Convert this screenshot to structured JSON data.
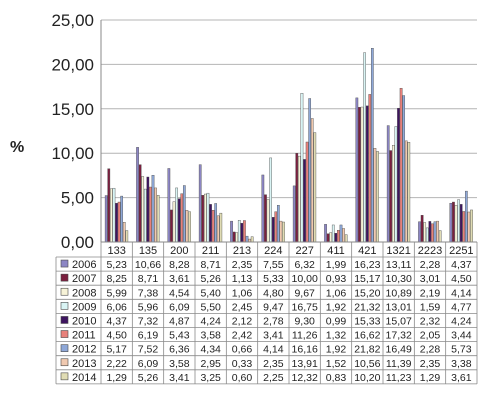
{
  "chart_data": {
    "type": "bar",
    "title": "",
    "xlabel": "",
    "ylabel": "%",
    "ylim": [
      0,
      25
    ],
    "yticks": [
      "0,00",
      "5,00",
      "10,00",
      "15,00",
      "20,00",
      "25,00"
    ],
    "grid": true,
    "legend": "data-table",
    "categories": [
      "133",
      "135",
      "200",
      "211",
      "213",
      "224",
      "227",
      "411",
      "421",
      "1321",
      "2223",
      "2251"
    ],
    "series": [
      {
        "name": "2006",
        "color": "#8c86c4",
        "labels": [
          "5,23",
          "10,66",
          "8,28",
          "8,71",
          "2,35",
          "7,55",
          "6,32",
          "1,99",
          "16,23",
          "13,11",
          "2,28",
          "4,37"
        ],
        "values": [
          5.23,
          10.66,
          8.28,
          8.71,
          2.35,
          7.55,
          6.32,
          1.99,
          16.23,
          13.11,
          2.28,
          4.37
        ]
      },
      {
        "name": "2007",
        "color": "#7b1f3f",
        "labels": [
          "8,25",
          "8,71",
          "3,61",
          "5,26",
          "1,13",
          "5,33",
          "10,00",
          "0,93",
          "15,17",
          "10,30",
          "3,01",
          "4,50"
        ],
        "values": [
          8.25,
          8.71,
          3.61,
          5.26,
          1.13,
          5.33,
          10.0,
          0.93,
          15.17,
          10.3,
          3.01,
          4.5
        ]
      },
      {
        "name": "2008",
        "color": "#f7f3d8",
        "labels": [
          "5,99",
          "7,38",
          "4,54",
          "5,40",
          "1,06",
          "4,80",
          "9,67",
          "1,06",
          "15,20",
          "10,89",
          "2,19",
          "4,14"
        ],
        "values": [
          5.99,
          7.38,
          4.54,
          5.4,
          1.06,
          4.8,
          9.67,
          1.06,
          15.2,
          10.89,
          2.19,
          4.14
        ]
      },
      {
        "name": "2009",
        "color": "#d9f4f4",
        "labels": [
          "6,06",
          "5,96",
          "6,09",
          "5,50",
          "2,45",
          "9,47",
          "16,75",
          "1,92",
          "21,32",
          "13,01",
          "1,59",
          "4,77"
        ],
        "values": [
          6.06,
          5.96,
          6.09,
          5.5,
          2.45,
          9.47,
          16.75,
          1.92,
          21.32,
          13.01,
          1.59,
          4.77
        ]
      },
      {
        "name": "2010",
        "color": "#3e1460",
        "labels": [
          "4,37",
          "7,32",
          "4,87",
          "4,24",
          "2,12",
          "2,78",
          "9,30",
          "0,99",
          "15,33",
          "15,07",
          "2,32",
          "4,24"
        ],
        "values": [
          4.37,
          7.32,
          4.87,
          4.24,
          2.12,
          2.78,
          9.3,
          0.99,
          15.33,
          15.07,
          2.32,
          4.24
        ]
      },
      {
        "name": "2011",
        "color": "#e8817b",
        "labels": [
          "4,50",
          "6,19",
          "5,43",
          "3,58",
          "2,42",
          "3,41",
          "11,26",
          "1,32",
          "16,62",
          "17,32",
          "2,05",
          "3,44"
        ],
        "values": [
          4.5,
          6.19,
          5.43,
          3.58,
          2.42,
          3.41,
          11.26,
          1.32,
          16.62,
          17.32,
          2.05,
          3.44
        ]
      },
      {
        "name": "2012",
        "color": "#8fa8d8",
        "labels": [
          "5,17",
          "7,52",
          "6,36",
          "4,34",
          "0,66",
          "4,14",
          "16,16",
          "1,92",
          "21,82",
          "16,49",
          "2,28",
          "5,73"
        ],
        "values": [
          5.17,
          7.52,
          6.36,
          4.34,
          0.66,
          4.14,
          16.16,
          1.92,
          21.82,
          16.49,
          2.28,
          5.73
        ]
      },
      {
        "name": "2013",
        "color": "#f0c9b0",
        "labels": [
          "2,22",
          "6,09",
          "3,58",
          "2,95",
          "0,33",
          "2,35",
          "13,91",
          "1,52",
          "10,56",
          "11,39",
          "2,35",
          "3,38"
        ],
        "values": [
          2.22,
          6.09,
          3.58,
          2.95,
          0.33,
          2.35,
          13.91,
          1.52,
          10.56,
          11.39,
          2.35,
          3.38
        ]
      },
      {
        "name": "2014",
        "color": "#e0dcb4",
        "labels": [
          "1,29",
          "5,26",
          "3,41",
          "3,25",
          "0,60",
          "2,25",
          "12,32",
          "0,83",
          "10,20",
          "11,23",
          "1,29",
          "3,61"
        ],
        "values": [
          1.29,
          5.26,
          3.41,
          3.25,
          0.6,
          2.25,
          12.32,
          0.83,
          10.2,
          11.23,
          1.29,
          3.61
        ]
      }
    ]
  }
}
